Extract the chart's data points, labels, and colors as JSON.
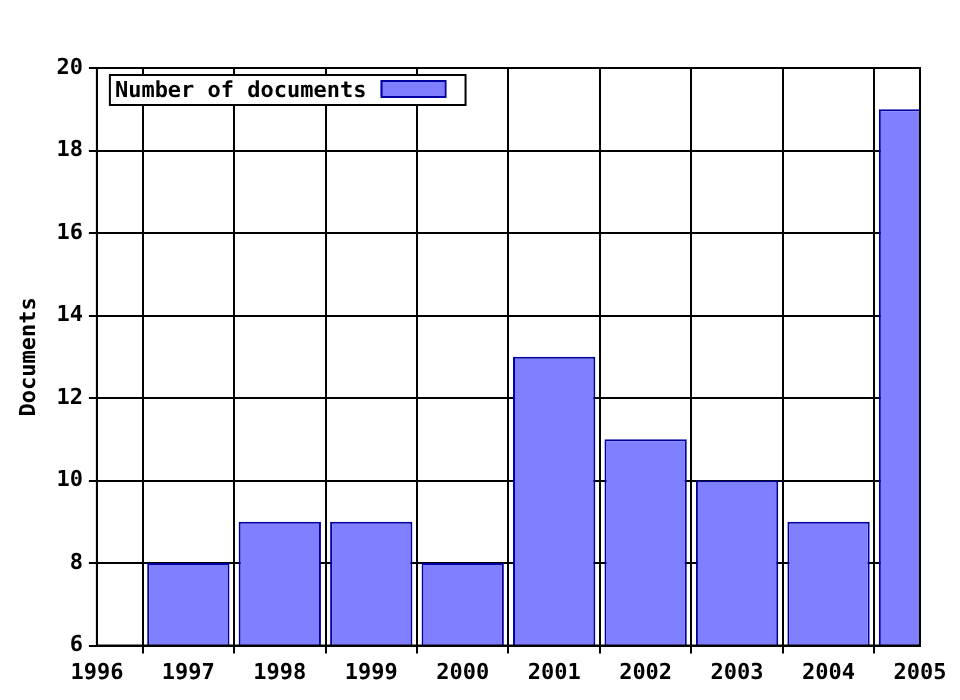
{
  "chart_data": {
    "type": "bar",
    "ylabel": "Documents",
    "x": [
      1997,
      1998,
      1999,
      2000,
      2001,
      2002,
      2003,
      2004,
      2005
    ],
    "series": [
      {
        "name": "Number of documents",
        "color": "#7f7fff",
        "values": [
          8,
          9,
          9,
          8,
          13,
          11,
          10,
          9,
          19
        ]
      }
    ],
    "xlim": [
      1996,
      2005
    ],
    "xticks": [
      1996,
      1997,
      1998,
      1999,
      2000,
      2001,
      2002,
      2003,
      2004,
      2005
    ],
    "ylim": [
      6,
      20
    ],
    "yticks": [
      6,
      8,
      10,
      12,
      14,
      16,
      18,
      20
    ],
    "grid": true,
    "legend": "top left"
  }
}
